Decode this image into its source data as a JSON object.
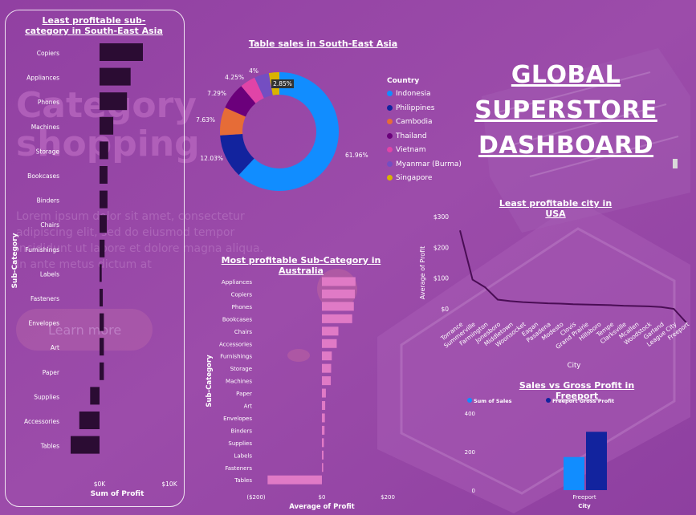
{
  "page_title": "GLOBAL\nSUPERSTORE\nDASHBOARD",
  "background_text": {
    "heading": "Category shopping",
    "lorem": "Lorem ipsum dolor sit amet, consectetur adipiscing elit, sed do eiusmod tempor incididunt ut labore et dolore magna aliqua. In ante metus dictum at",
    "button": "Learn more"
  },
  "colors": {
    "background": "#9a4aa8",
    "dark_bar": "#2b0c33",
    "pink_bar": "#e07ac6",
    "line": "#4a0d55",
    "sales_bar": "#118dff",
    "profit_bar": "#12239e"
  },
  "chart_data": [
    {
      "id": "least-profitable-subcategory-sea",
      "type": "bar",
      "orientation": "horizontal",
      "title": "Least profitable sub-category in South-East Asia",
      "xlabel": "Sum of Profit",
      "ylabel": "Sub-Category",
      "xticks": [
        "$0K",
        "$10K"
      ],
      "xlim": [
        -5000,
        13000
      ],
      "categories": [
        "Copiers",
        "Appliances",
        "Phones",
        "Machines",
        "Storage",
        "Bookcases",
        "Binders",
        "Chairs",
        "Furnishings",
        "Labels",
        "Fasteners",
        "Envelopes",
        "Art",
        "Paper",
        "Supplies",
        "Accessories",
        "Tables"
      ],
      "values": [
        6000,
        4300,
        3800,
        1900,
        1200,
        1100,
        1100,
        1000,
        700,
        300,
        450,
        600,
        600,
        600,
        1300,
        2800,
        4000
      ],
      "values_note": "bar lengths measured from the left start; bars extend into negatives for Supplies, Accessories, Tables",
      "signed_values": [
        6000,
        4300,
        3800,
        1900,
        1200,
        1100,
        1100,
        1000,
        700,
        300,
        450,
        600,
        600,
        600,
        -1300,
        -2800,
        -4000
      ]
    },
    {
      "id": "table-sales-sea",
      "type": "pie",
      "donut": true,
      "title": "Table sales in South-East Asia",
      "legend_title": "Country",
      "legend_position": "right",
      "slices": [
        {
          "label": "Indonesia",
          "value": 61.96,
          "color": "#118dff"
        },
        {
          "label": "Philippines",
          "value": 12.03,
          "color": "#12239e"
        },
        {
          "label": "Cambodia",
          "value": 7.63,
          "color": "#e66c37"
        },
        {
          "label": "Thailand",
          "value": 7.29,
          "color": "#6b007b"
        },
        {
          "label": "Vietnam",
          "value": 4.25,
          "color": "#e044a7"
        },
        {
          "label": "Myanmar (Burma)",
          "value": 4.0,
          "color": "#744ec2"
        },
        {
          "label": "Singapore",
          "value": 2.85,
          "color": "#d9b300"
        }
      ],
      "data_labels": [
        "61.96%",
        "12.03%",
        "7.63%",
        "7.29%",
        "4.25%",
        "4%",
        "2.85%"
      ]
    },
    {
      "id": "most-profitable-subcategory-australia",
      "type": "bar",
      "orientation": "horizontal",
      "title": "Most profitable Sub-Category in Australia",
      "xlabel": "Average of Profit",
      "ylabel": "Sub-Category",
      "xticks": [
        -200,
        0,
        200
      ],
      "xtick_labels": [
        "($200)",
        "$0",
        "$200"
      ],
      "xlim": [
        -200,
        200
      ],
      "categories": [
        "Appliances",
        "Copiers",
        "Phones",
        "Bookcases",
        "Chairs",
        "Accessories",
        "Furnishings",
        "Storage",
        "Machines",
        "Paper",
        "Art",
        "Envelopes",
        "Binders",
        "Supplies",
        "Labels",
        "Fasteners",
        "Tables"
      ],
      "values": [
        102,
        100,
        97,
        92,
        50,
        45,
        30,
        28,
        27,
        12,
        10,
        9,
        8,
        6,
        5,
        4,
        -165
      ]
    },
    {
      "id": "least-profitable-city-usa",
      "type": "line",
      "title": "Least profitable city in USA",
      "xlabel": "City",
      "ylabel": "Average of Profit",
      "yticks": [
        0,
        100,
        200,
        300
      ],
      "ytick_labels": [
        "$0",
        "$100",
        "$200",
        "$300"
      ],
      "ylim": [
        -50,
        320
      ],
      "categories": [
        "Torrance",
        "Summerville",
        "Farmington",
        "Jonesboro",
        "Middletown",
        "Woonsocket",
        "Eagan",
        "Pasadena",
        "Modesto",
        "Clovis",
        "Grand Prairie",
        "Hillsboro",
        "Tempe",
        "Clarksville",
        "Mcallen",
        "Woodstock",
        "Garland",
        "League City",
        "Freeport"
      ],
      "values": [
        255,
        95,
        70,
        30,
        25,
        22,
        20,
        18,
        17,
        15,
        14,
        13,
        12,
        10,
        9,
        8,
        6,
        0,
        -45
      ]
    },
    {
      "id": "sales-vs-gross-profit-freeport",
      "type": "bar",
      "title": "Sales vs Gross Profit in Freeport",
      "xlabel": "City",
      "legend_position": "top-left",
      "yticks": [
        0,
        200,
        400
      ],
      "ylim": [
        0,
        420
      ],
      "categories": [
        "Freeport"
      ],
      "series": [
        {
          "name": "Sum of Sales",
          "values": [
            172
          ],
          "color": "#118dff"
        },
        {
          "name": "Freeport Gross Profit",
          "values": [
            303
          ],
          "color": "#12239e"
        }
      ]
    }
  ]
}
